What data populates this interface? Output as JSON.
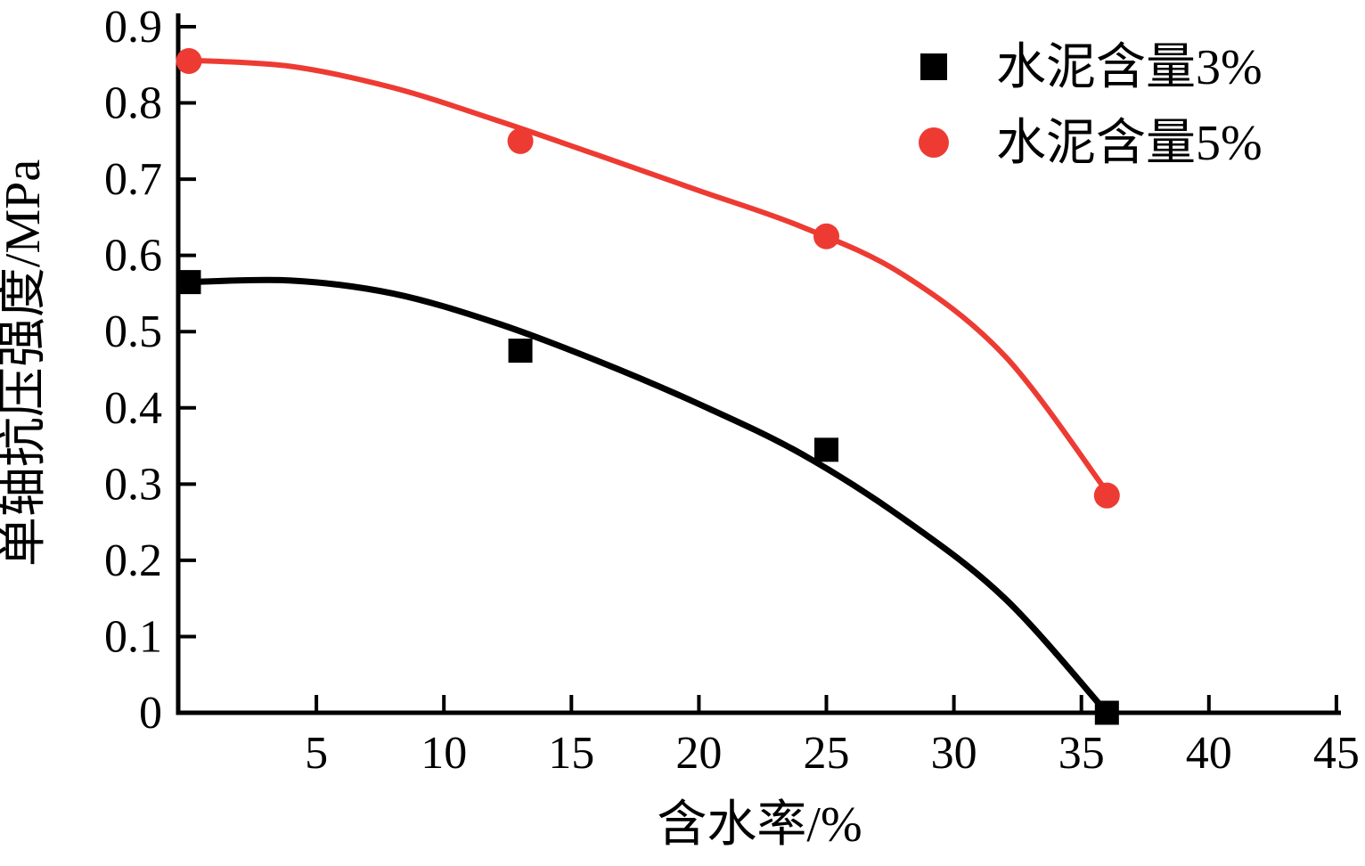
{
  "chart_data": {
    "type": "scatter",
    "title": "",
    "xlabel": "含水率/%",
    "ylabel": "单轴抗压强度/MPa",
    "xlim": [
      0,
      45
    ],
    "ylim": [
      0,
      0.9
    ],
    "xticks": [
      5,
      10,
      15,
      20,
      25,
      30,
      35,
      40,
      45
    ],
    "yticks": [
      0,
      0.1,
      0.2,
      0.3,
      0.4,
      0.5,
      0.6,
      0.7,
      0.8,
      0.9
    ],
    "ytick_labels": [
      "0",
      "0.1",
      "0.2",
      "0.3",
      "0.4",
      "0.5",
      "0.6",
      "0.7",
      "0.8",
      "0.9"
    ],
    "grid": false,
    "legend_position": "top-right",
    "series": [
      {
        "name": "水泥含量3%",
        "marker": "square",
        "color": "#000000",
        "points": [
          [
            0,
            0.565
          ],
          [
            13,
            0.475
          ],
          [
            25,
            0.345
          ],
          [
            36,
            0.0
          ]
        ],
        "fit_curve": [
          [
            0,
            0.565
          ],
          [
            4,
            0.567
          ],
          [
            8,
            0.55
          ],
          [
            12,
            0.512
          ],
          [
            16,
            0.462
          ],
          [
            20,
            0.405
          ],
          [
            24,
            0.34
          ],
          [
            28,
            0.255
          ],
          [
            32,
            0.15
          ],
          [
            36,
            0.0
          ]
        ]
      },
      {
        "name": "水泥含量5%",
        "marker": "circle",
        "color": "#ED3B33",
        "points": [
          [
            0,
            0.855
          ],
          [
            13,
            0.75
          ],
          [
            25,
            0.625
          ],
          [
            36,
            0.285
          ]
        ],
        "fit_curve": [
          [
            0,
            0.856
          ],
          [
            4,
            0.848
          ],
          [
            8,
            0.82
          ],
          [
            12,
            0.778
          ],
          [
            16,
            0.732
          ],
          [
            20,
            0.685
          ],
          [
            24,
            0.638
          ],
          [
            28,
            0.575
          ],
          [
            32,
            0.468
          ],
          [
            36,
            0.29
          ]
        ]
      }
    ]
  }
}
